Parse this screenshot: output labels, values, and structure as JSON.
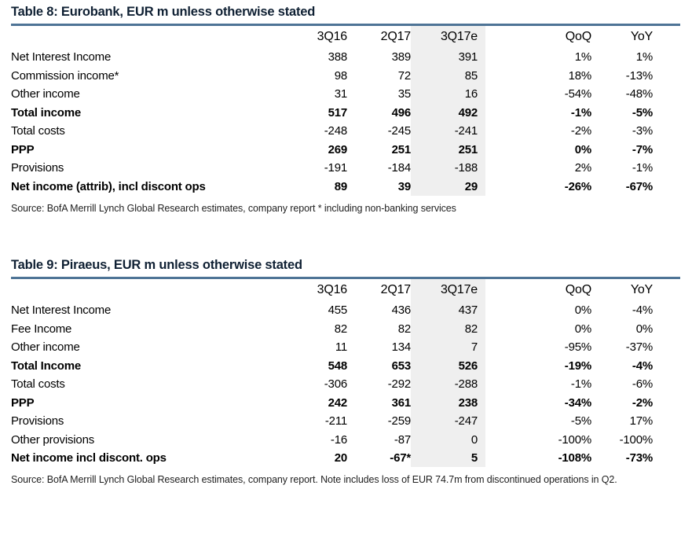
{
  "colors": {
    "title": "#0f2033",
    "rule": "#4e7496",
    "highlight": "#efefef",
    "text": "#000000",
    "source": "#1f1f1f",
    "bg": "#ffffff"
  },
  "tables": [
    {
      "title": "Table 8: Eurobank, EUR m unless otherwise stated",
      "columns": [
        "",
        "3Q16",
        "2Q17",
        "3Q17e",
        "QoQ",
        "YoY"
      ],
      "highlight_column": "3Q17e",
      "rows": [
        {
          "label": "Net Interest Income",
          "bold": false,
          "values": [
            "388",
            "389",
            "391",
            "1%",
            "1%"
          ]
        },
        {
          "label": "Commission income*",
          "bold": false,
          "values": [
            "98",
            "72",
            "85",
            "18%",
            "-13%"
          ]
        },
        {
          "label": "Other income",
          "bold": false,
          "values": [
            "31",
            "35",
            "16",
            "-54%",
            "-48%"
          ]
        },
        {
          "label": "Total income",
          "bold": true,
          "values": [
            "517",
            "496",
            "492",
            "-1%",
            "-5%"
          ]
        },
        {
          "label": "Total costs",
          "bold": false,
          "values": [
            "-248",
            "-245",
            "-241",
            "-2%",
            "-3%"
          ]
        },
        {
          "label": "PPP",
          "bold": true,
          "values": [
            "269",
            "251",
            "251",
            "0%",
            "-7%"
          ]
        },
        {
          "label": "Provisions",
          "bold": false,
          "values": [
            "-191",
            "-184",
            "-188",
            "2%",
            "-1%"
          ]
        },
        {
          "label": "Net income (attrib), incl discont ops",
          "bold": true,
          "values": [
            "89",
            "39",
            "29",
            "-26%",
            "-67%"
          ]
        }
      ],
      "source": "Source: BofA Merrill Lynch Global Research estimates, company report * including non-banking services"
    },
    {
      "title": "Table 9: Piraeus, EUR m unless otherwise stated",
      "columns": [
        "",
        "3Q16",
        "2Q17",
        "3Q17e",
        "QoQ",
        "YoY"
      ],
      "highlight_column": "3Q17e",
      "rows": [
        {
          "label": "Net Interest Income",
          "bold": false,
          "values": [
            "455",
            "436",
            "437",
            "0%",
            "-4%"
          ]
        },
        {
          "label": "Fee Income",
          "bold": false,
          "values": [
            "82",
            "82",
            "82",
            "0%",
            "0%"
          ]
        },
        {
          "label": "Other income",
          "bold": false,
          "values": [
            "11",
            "134",
            "7",
            "-95%",
            "-37%"
          ]
        },
        {
          "label": "Total Income",
          "bold": true,
          "values": [
            "548",
            "653",
            "526",
            "-19%",
            "-4%"
          ]
        },
        {
          "label": "Total costs",
          "bold": false,
          "values": [
            "-306",
            "-292",
            "-288",
            "-1%",
            "-6%"
          ]
        },
        {
          "label": "PPP",
          "bold": true,
          "values": [
            "242",
            "361",
            "238",
            "-34%",
            "-2%"
          ]
        },
        {
          "label": "Provisions",
          "bold": false,
          "values": [
            "-211",
            "-259",
            "-247",
            "-5%",
            "17%"
          ]
        },
        {
          "label": "Other provisions",
          "bold": false,
          "values": [
            "-16",
            "-87",
            "0",
            "-100%",
            "-100%"
          ]
        },
        {
          "label": "Net income incl discont. ops",
          "bold": true,
          "values": [
            "20",
            "-67*",
            "5",
            "-108%",
            "-73%"
          ]
        }
      ],
      "source": "Source: BofA Merrill Lynch Global Research estimates, company report. Note includes loss of EUR 74.7m from discontinued operations in Q2."
    }
  ]
}
